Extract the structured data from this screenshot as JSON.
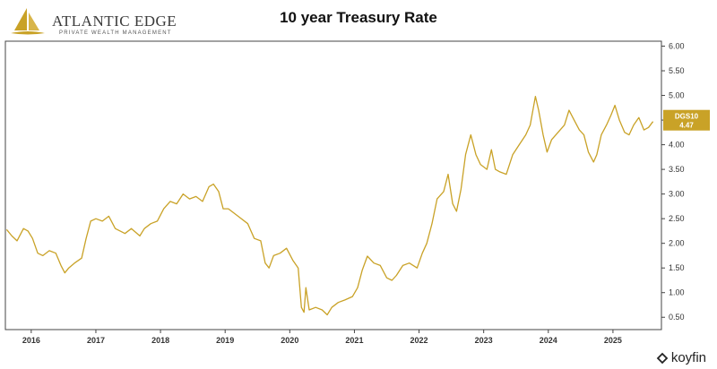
{
  "brand": {
    "name": "ATLANTIC EDGE",
    "tagline": "PRIVATE WEALTH MANAGEMENT",
    "source": "koyfin"
  },
  "colors": {
    "line": "#C9A227",
    "axis": "#444444",
    "tag": "#C9A227"
  },
  "chart_data": {
    "type": "line",
    "title": "10 year Treasury Rate",
    "xlabel": "",
    "ylabel": "",
    "ylim": [
      0.25,
      6.1
    ],
    "xlim": [
      2015.6,
      2025.75
    ],
    "y_ticks": [
      "0.50",
      "1.00",
      "1.50",
      "2.00",
      "2.50",
      "3.00",
      "3.50",
      "4.00",
      "4.50",
      "5.00",
      "5.50",
      "6.00"
    ],
    "x_ticks": [
      "2016",
      "2017",
      "2018",
      "2019",
      "2020",
      "2021",
      "2022",
      "2023",
      "2024",
      "2025"
    ],
    "grid": false,
    "series": [
      {
        "name": "DGS10",
        "last_value": "4.47",
        "points": [
          [
            2015.62,
            2.28
          ],
          [
            2015.7,
            2.15
          ],
          [
            2015.78,
            2.05
          ],
          [
            2015.88,
            2.3
          ],
          [
            2015.95,
            2.25
          ],
          [
            2016.02,
            2.1
          ],
          [
            2016.1,
            1.8
          ],
          [
            2016.18,
            1.75
          ],
          [
            2016.28,
            1.85
          ],
          [
            2016.38,
            1.8
          ],
          [
            2016.46,
            1.55
          ],
          [
            2016.52,
            1.4
          ],
          [
            2016.58,
            1.5
          ],
          [
            2016.67,
            1.6
          ],
          [
            2016.78,
            1.7
          ],
          [
            2016.85,
            2.1
          ],
          [
            2016.92,
            2.45
          ],
          [
            2017.0,
            2.5
          ],
          [
            2017.1,
            2.45
          ],
          [
            2017.2,
            2.55
          ],
          [
            2017.3,
            2.3
          ],
          [
            2017.45,
            2.2
          ],
          [
            2017.55,
            2.3
          ],
          [
            2017.68,
            2.15
          ],
          [
            2017.75,
            2.3
          ],
          [
            2017.85,
            2.4
          ],
          [
            2017.95,
            2.45
          ],
          [
            2018.05,
            2.7
          ],
          [
            2018.15,
            2.85
          ],
          [
            2018.25,
            2.8
          ],
          [
            2018.35,
            3.0
          ],
          [
            2018.45,
            2.9
          ],
          [
            2018.55,
            2.95
          ],
          [
            2018.65,
            2.85
          ],
          [
            2018.75,
            3.15
          ],
          [
            2018.82,
            3.2
          ],
          [
            2018.9,
            3.05
          ],
          [
            2018.97,
            2.7
          ],
          [
            2019.05,
            2.7
          ],
          [
            2019.2,
            2.55
          ],
          [
            2019.35,
            2.4
          ],
          [
            2019.45,
            2.1
          ],
          [
            2019.55,
            2.05
          ],
          [
            2019.62,
            1.6
          ],
          [
            2019.68,
            1.5
          ],
          [
            2019.75,
            1.75
          ],
          [
            2019.85,
            1.8
          ],
          [
            2019.95,
            1.9
          ],
          [
            2020.05,
            1.65
          ],
          [
            2020.13,
            1.5
          ],
          [
            2020.18,
            0.7
          ],
          [
            2020.22,
            0.6
          ],
          [
            2020.25,
            1.1
          ],
          [
            2020.3,
            0.65
          ],
          [
            2020.4,
            0.7
          ],
          [
            2020.5,
            0.65
          ],
          [
            2020.58,
            0.55
          ],
          [
            2020.65,
            0.7
          ],
          [
            2020.75,
            0.8
          ],
          [
            2020.85,
            0.85
          ],
          [
            2020.97,
            0.92
          ],
          [
            2021.05,
            1.1
          ],
          [
            2021.12,
            1.45
          ],
          [
            2021.2,
            1.74
          ],
          [
            2021.3,
            1.6
          ],
          [
            2021.4,
            1.55
          ],
          [
            2021.5,
            1.3
          ],
          [
            2021.58,
            1.25
          ],
          [
            2021.65,
            1.35
          ],
          [
            2021.75,
            1.55
          ],
          [
            2021.85,
            1.6
          ],
          [
            2021.97,
            1.5
          ],
          [
            2022.05,
            1.8
          ],
          [
            2022.12,
            2.0
          ],
          [
            2022.2,
            2.4
          ],
          [
            2022.28,
            2.9
          ],
          [
            2022.38,
            3.05
          ],
          [
            2022.45,
            3.4
          ],
          [
            2022.52,
            2.8
          ],
          [
            2022.58,
            2.65
          ],
          [
            2022.65,
            3.1
          ],
          [
            2022.72,
            3.8
          ],
          [
            2022.8,
            4.2
          ],
          [
            2022.88,
            3.8
          ],
          [
            2022.95,
            3.6
          ],
          [
            2023.05,
            3.5
          ],
          [
            2023.12,
            3.9
          ],
          [
            2023.18,
            3.5
          ],
          [
            2023.25,
            3.45
          ],
          [
            2023.35,
            3.4
          ],
          [
            2023.45,
            3.8
          ],
          [
            2023.55,
            4.0
          ],
          [
            2023.65,
            4.2
          ],
          [
            2023.72,
            4.4
          ],
          [
            2023.8,
            4.98
          ],
          [
            2023.85,
            4.7
          ],
          [
            2023.92,
            4.2
          ],
          [
            2023.98,
            3.85
          ],
          [
            2024.05,
            4.1
          ],
          [
            2024.15,
            4.25
          ],
          [
            2024.25,
            4.4
          ],
          [
            2024.32,
            4.7
          ],
          [
            2024.4,
            4.5
          ],
          [
            2024.48,
            4.3
          ],
          [
            2024.55,
            4.2
          ],
          [
            2024.62,
            3.85
          ],
          [
            2024.7,
            3.65
          ],
          [
            2024.75,
            3.8
          ],
          [
            2024.82,
            4.2
          ],
          [
            2024.9,
            4.4
          ],
          [
            2024.97,
            4.6
          ],
          [
            2025.03,
            4.8
          ],
          [
            2025.1,
            4.5
          ],
          [
            2025.18,
            4.25
          ],
          [
            2025.25,
            4.2
          ],
          [
            2025.32,
            4.4
          ],
          [
            2025.4,
            4.55
          ],
          [
            2025.48,
            4.3
          ],
          [
            2025.55,
            4.35
          ],
          [
            2025.62,
            4.47
          ]
        ]
      }
    ]
  }
}
